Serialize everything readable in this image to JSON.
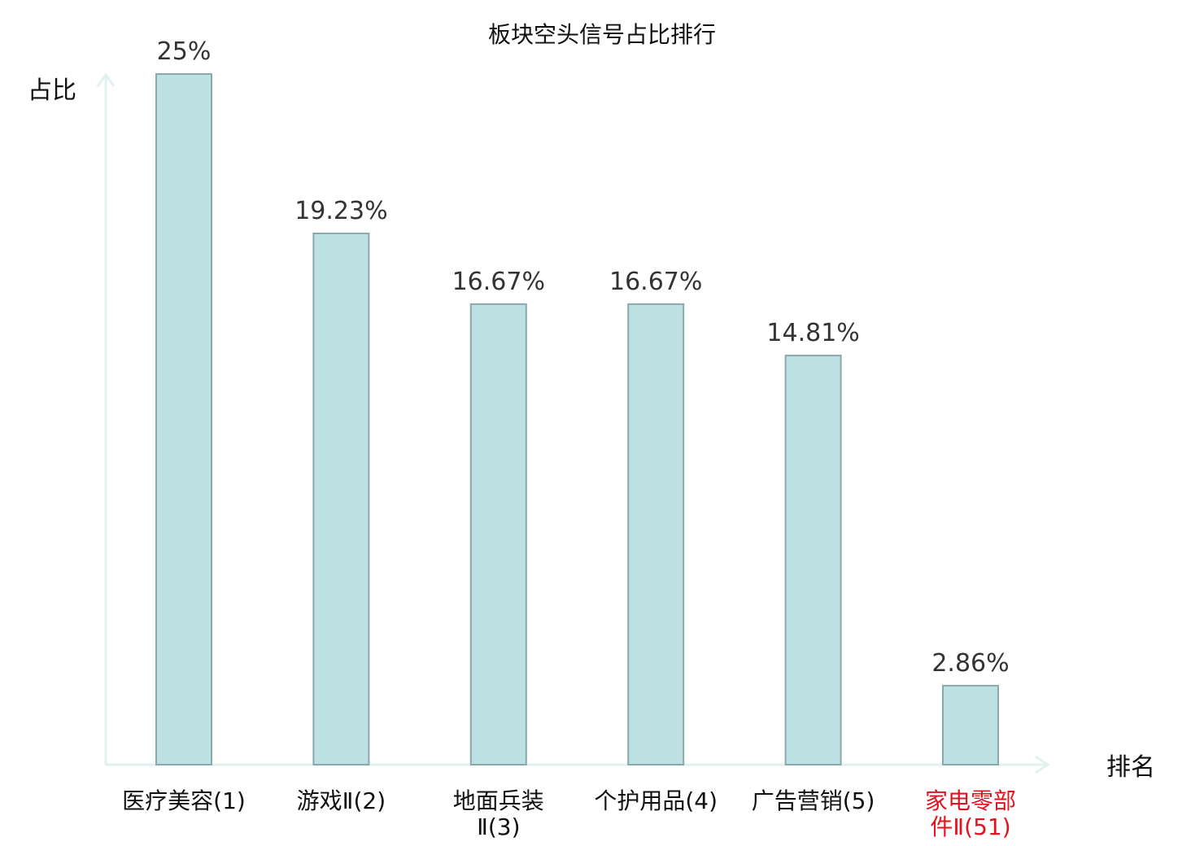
{
  "chart_data": {
    "type": "bar",
    "title": "板块空头信号占比排行",
    "ylabel": "占比",
    "xlabel": "排名",
    "ylim": [
      0,
      25
    ],
    "grid": false,
    "categories": [
      [
        "医疗美容(1)"
      ],
      [
        "游戏Ⅱ(2)"
      ],
      [
        "地面兵装",
        "Ⅱ(3)"
      ],
      [
        "个护用品(4)"
      ],
      [
        "广告营销(5)"
      ],
      [
        "家电零部",
        "件Ⅱ(51)"
      ]
    ],
    "values": [
      25,
      19.23,
      16.67,
      16.67,
      14.81,
      2.86
    ],
    "value_labels": [
      "25%",
      "19.23%",
      "16.67%",
      "16.67%",
      "14.81%",
      "2.86%"
    ],
    "highlight_index": 5,
    "colors": {
      "bar_fill": "#bde0e2",
      "bar_stroke": "#8aa9ab",
      "axis": "#e0f2ef",
      "highlight_text": "#e0141e"
    }
  }
}
